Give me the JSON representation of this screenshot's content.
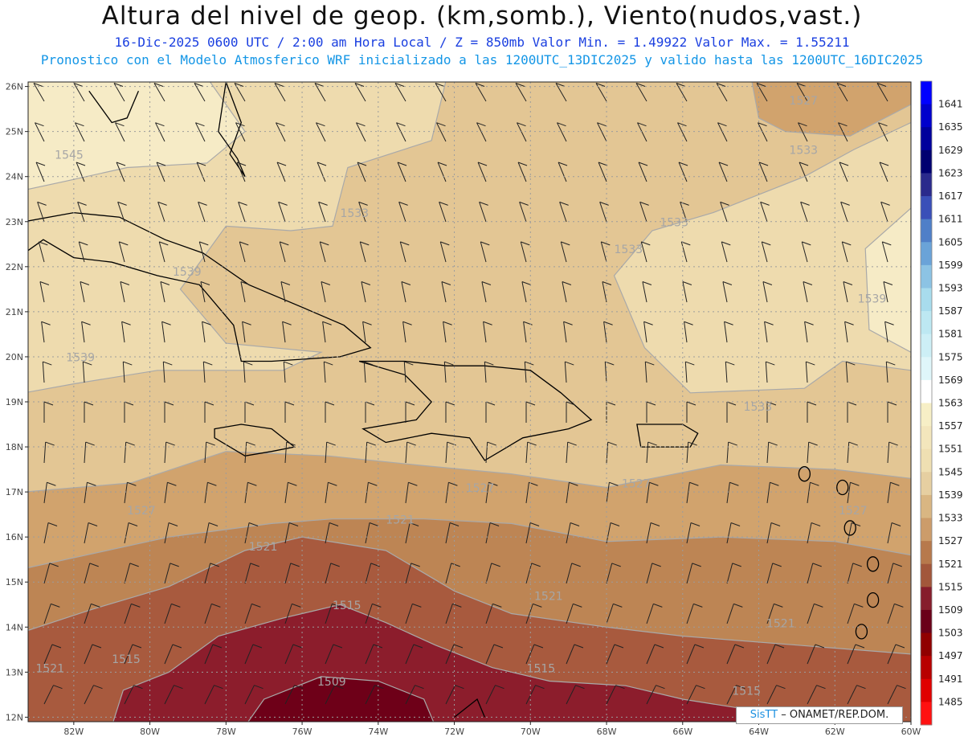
{
  "header": {
    "title": "Altura del nivel de geop. (km,somb.), Viento(nudos,vast.)",
    "line1": "16-Dic-2025   0600 UTC / 2:00 am Hora Local / Z = 850mb     Valor Min. = 1.49922  Valor Max. = 1.55211",
    "line2": "Pronostico con el Modelo Atmosferico WRF inicializado a las 1200UTC_13DIC2025 y valido hasta las  1200UTC_16DIC2025"
  },
  "map": {
    "lat_labels": [
      "26N",
      "25N",
      "24N",
      "23N",
      "22N",
      "21N",
      "20N",
      "19N",
      "18N",
      "17N",
      "16N",
      "15N",
      "14N",
      "13N",
      "12N"
    ],
    "lon_labels": [
      "82W",
      "80W",
      "78W",
      "76W",
      "74W",
      "72W",
      "70W",
      "68W",
      "66W",
      "64W",
      "62W",
      "60W"
    ],
    "contour_labels": [
      {
        "text": "1545",
        "lon": -82.5,
        "lat": 24.4
      },
      {
        "text": "1539",
        "lon": -79.4,
        "lat": 21.8
      },
      {
        "text": "1539",
        "lon": -82.2,
        "lat": 19.9
      },
      {
        "text": "1533",
        "lon": -75.0,
        "lat": 23.1
      },
      {
        "text": "1533",
        "lon": -67.8,
        "lat": 22.3
      },
      {
        "text": "1533",
        "lon": -66.6,
        "lat": 22.9
      },
      {
        "text": "1533",
        "lon": -63.2,
        "lat": 24.5
      },
      {
        "text": "1527",
        "lon": -63.2,
        "lat": 25.6
      },
      {
        "text": "1539",
        "lon": -61.4,
        "lat": 21.2
      },
      {
        "text": "1533",
        "lon": -64.4,
        "lat": 18.8
      },
      {
        "text": "1527",
        "lon": -71.7,
        "lat": 17.0
      },
      {
        "text": "1527",
        "lon": -67.6,
        "lat": 17.1
      },
      {
        "text": "1527",
        "lon": -80.6,
        "lat": 16.5
      },
      {
        "text": "1527",
        "lon": -61.9,
        "lat": 16.5
      },
      {
        "text": "1521",
        "lon": -73.8,
        "lat": 16.3
      },
      {
        "text": "1521",
        "lon": -77.4,
        "lat": 15.7
      },
      {
        "text": "1521",
        "lon": -69.9,
        "lat": 14.6
      },
      {
        "text": "1521",
        "lon": -63.8,
        "lat": 14.0
      },
      {
        "text": "1521",
        "lon": -83.0,
        "lat": 13.0
      },
      {
        "text": "1515",
        "lon": -75.2,
        "lat": 14.4
      },
      {
        "text": "1515",
        "lon": -81.0,
        "lat": 13.2
      },
      {
        "text": "1515",
        "lon": -70.1,
        "lat": 13.0
      },
      {
        "text": "1515",
        "lon": -64.7,
        "lat": 12.5
      },
      {
        "text": "1509",
        "lon": -75.6,
        "lat": 12.7
      }
    ]
  },
  "colorbar": {
    "labels": [
      "1641",
      "1635",
      "1629",
      "1623",
      "1617",
      "1611",
      "1605",
      "1599",
      "1593",
      "1587",
      "1581",
      "1575",
      "1569",
      "1563",
      "1557",
      "1551",
      "1545",
      "1539",
      "1533",
      "1527",
      "1521",
      "1515",
      "1509",
      "1503",
      "1497",
      "1491",
      "1485"
    ],
    "colors": [
      "#0000ff",
      "#0000cc",
      "#00009c",
      "#000070",
      "#2a2a8c",
      "#3a4fb8",
      "#4f7fc8",
      "#6aa3d8",
      "#8cc3e4",
      "#a8dced",
      "#bde8f2",
      "#cdeff6",
      "#dff6fa",
      "#ffffff",
      "#f7efc6",
      "#f3e6bc",
      "#efdfb2",
      "#e6cfa1",
      "#d9b682",
      "#cc9c6a",
      "#b7794c",
      "#a2573b",
      "#861d2c",
      "#6a0019",
      "#900000",
      "#b80000",
      "#e00000",
      "#ff1111"
    ],
    "levels": {
      "1545": "#f6ebc6",
      "1539": "#eedbae",
      "1533": "#e3c694",
      "1527": "#d1a36d",
      "1521": "#bd8554",
      "1515": "#a85a3e",
      "1509": "#8c1d2c",
      "1503": "#6e0018"
    }
  },
  "credit": {
    "logo": "SisTT",
    "text": "– ONAMET/REP.DOM."
  }
}
